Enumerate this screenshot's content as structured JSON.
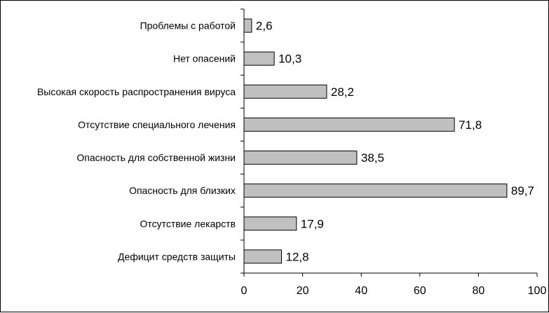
{
  "chart_data": {
    "type": "bar",
    "orientation": "horizontal",
    "title": "",
    "xlabel": "",
    "ylabel": "",
    "categories": [
      "Проблемы с работой",
      "Нет опасений",
      "Высокая скорость распространения вируса",
      "Отсутствие специального лечения",
      "Опасность для собственной жизни",
      "Опасность для близких",
      "Отсутствие лекарств",
      "Дефицит средств защиты"
    ],
    "values": [
      2.6,
      10.3,
      28.2,
      71.8,
      38.5,
      89.7,
      17.9,
      12.8
    ],
    "value_labels": [
      "2,6",
      "10,3",
      "28,2",
      "71,8",
      "38,5",
      "89,7",
      "17,9",
      "12,8"
    ],
    "xlim": [
      0,
      100
    ],
    "xticks": [
      0,
      20,
      40,
      60,
      80,
      100
    ],
    "grid": false,
    "legend": "none",
    "bar_color": "#c0c0c0",
    "border_color": "#000000"
  }
}
